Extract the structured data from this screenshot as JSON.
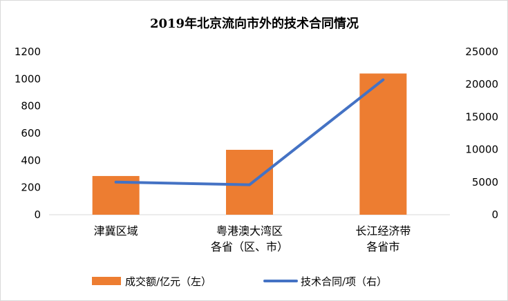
{
  "chart_data": {
    "type": "bar",
    "title": "2019年北京流向市外的技术合同情况",
    "categories": [
      [
        "津冀区域"
      ],
      [
        "粤港澳大湾区",
        "各省（区、市）"
      ],
      [
        "长江经济带",
        "各省市"
      ]
    ],
    "series": [
      {
        "name": "成交额/亿元（左）",
        "type": "bar",
        "axis": "left",
        "color": "#ED7D31",
        "values": [
          285,
          478,
          1040
        ]
      },
      {
        "name": "技术合同/项（右）",
        "type": "line",
        "axis": "right",
        "color": "#4472C4",
        "values": [
          5000,
          4600,
          20700
        ]
      }
    ],
    "y_left": {
      "ylim": [
        0,
        1200
      ],
      "ticks": [
        "0",
        "200",
        "400",
        "600",
        "800",
        "1000",
        "1200"
      ]
    },
    "y_right": {
      "ylim": [
        0,
        25000
      ],
      "ticks": [
        "0",
        "5000",
        "10000",
        "15000",
        "20000",
        "25000"
      ]
    },
    "grid": false,
    "legend_position": "bottom"
  }
}
